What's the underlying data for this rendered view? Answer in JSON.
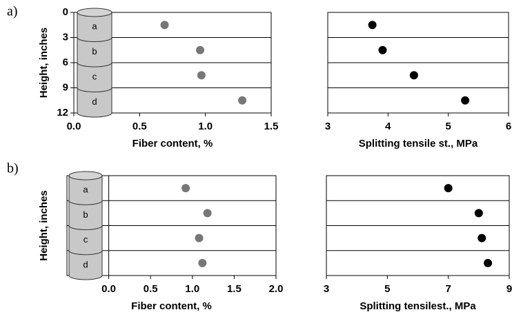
{
  "panel_labels": [
    "a)",
    "b)"
  ],
  "chart_data": [
    {
      "type": "scatter",
      "x_label": "Fiber content, %",
      "y_label": "Height, inches",
      "xlim": [
        0,
        1.5
      ],
      "xticks": [
        {
          "value": 0,
          "label": "0.0"
        },
        0.5,
        {
          "value": 1,
          "label": "1.0"
        },
        1.5
      ],
      "ylim": [
        0,
        12
      ],
      "yticks": [
        0,
        3,
        6,
        9,
        12
      ],
      "y_reversed": true,
      "grid_y": [
        3,
        6,
        9
      ],
      "segments": [
        "a",
        "b",
        "c",
        "d"
      ],
      "series": [
        {
          "color": "#777777",
          "x": [
            0.69,
            0.96,
            0.97,
            1.28
          ],
          "values": [
            1.5,
            4.5,
            7.5,
            10.5
          ]
        }
      ]
    },
    {
      "type": "scatter",
      "x_label": "Splitting tensile st., MPa",
      "xlim": [
        3,
        6
      ],
      "xticks": [
        3,
        4,
        5,
        6
      ],
      "ylim": [
        0,
        12
      ],
      "y_reversed": true,
      "grid_y": [
        3,
        6,
        9
      ],
      "series": [
        {
          "color": "#000000",
          "x": [
            3.74,
            3.91,
            4.43,
            5.28
          ],
          "values": [
            1.5,
            4.5,
            7.5,
            10.5
          ]
        }
      ]
    },
    {
      "type": "scatter",
      "x_label": "Fiber content, %",
      "y_label": "Height, inches",
      "xlim": [
        -0.5,
        2
      ],
      "xticks": [
        {
          "value": 0,
          "label": "0.0"
        },
        0.5,
        {
          "value": 1,
          "label": "1.0"
        },
        1.5,
        {
          "value": 2,
          "label": "2.0"
        }
      ],
      "ylim": [
        0,
        12
      ],
      "y_reversed": true,
      "grid_y": [
        3,
        6,
        9
      ],
      "zero_line": true,
      "segments": [
        "a",
        "b",
        "c",
        "d"
      ],
      "series": [
        {
          "color": "#777777",
          "x": [
            0.92,
            1.18,
            1.08,
            1.12
          ],
          "values": [
            1.5,
            4.5,
            7.5,
            10.5
          ]
        }
      ]
    },
    {
      "type": "scatter",
      "x_label": "Splitting tensilest., MPa",
      "xlim": [
        3,
        9
      ],
      "xticks": [
        3,
        5,
        7,
        9
      ],
      "ylim": [
        0,
        12
      ],
      "y_reversed": true,
      "grid_y": [
        3,
        6,
        9
      ],
      "series": [
        {
          "color": "#000000",
          "x": [
            7.0,
            8.0,
            8.1,
            8.3
          ],
          "values": [
            1.5,
            4.5,
            7.5,
            10.5
          ]
        }
      ]
    }
  ]
}
